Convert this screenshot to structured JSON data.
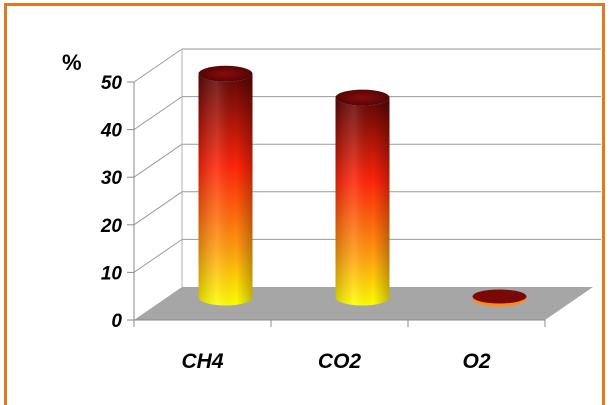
{
  "chart_data": {
    "type": "bar",
    "categories": [
      "CH4",
      "CO2",
      "O2"
    ],
    "values": [
      47,
      42,
      0.5
    ],
    "ylabel": "%",
    "ylim": [
      0,
      50
    ],
    "yticks": [
      "0",
      "10",
      "20",
      "30",
      "40",
      "50"
    ],
    "grid": true,
    "style": "3d-cylinder",
    "colors": {
      "frame": "#e07a1e",
      "floor": "#a6a6a6",
      "gridline": "#999999",
      "bar_top": "#7a0808",
      "bar_mid": "#ff2a0a",
      "bar_bottom": "#ffff00"
    }
  }
}
